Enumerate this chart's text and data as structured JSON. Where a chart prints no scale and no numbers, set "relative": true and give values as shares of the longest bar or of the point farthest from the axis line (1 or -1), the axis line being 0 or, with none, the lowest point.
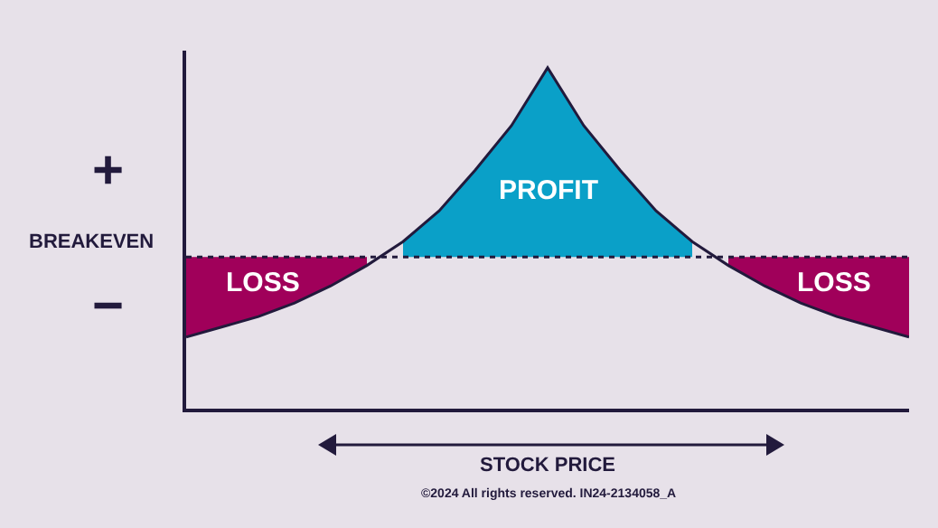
{
  "chart_data": {
    "type": "line",
    "relative": true,
    "xlabel": "STOCK PRICE",
    "categories": [
      null,
      null,
      null,
      null,
      null,
      null,
      null,
      null,
      null,
      null,
      null,
      null,
      null,
      null,
      null,
      null,
      null,
      null,
      null,
      null,
      null
    ],
    "series": [
      {
        "type": "area",
        "color": "#a0005a",
        "values": [
          0.445,
          0.445,
          0.445,
          0.445,
          0.445,
          0.445,
          null,
          null,
          null,
          null,
          null,
          null,
          null,
          null,
          null,
          null,
          null,
          null,
          null,
          null,
          null
        ]
      },
      {
        "type": "area",
        "color": "#0aa0c8",
        "values": [
          null,
          null,
          null,
          null,
          null,
          null,
          0.49,
          0.58,
          0.7,
          0.83,
          1,
          0.83,
          0.7,
          0.58,
          0.49,
          null,
          null,
          null,
          null,
          null,
          null
        ]
      },
      {
        "type": "area",
        "color": "#a0005a",
        "values": [
          null,
          null,
          null,
          null,
          null,
          null,
          null,
          null,
          null,
          null,
          null,
          null,
          null,
          null,
          null,
          0.445,
          0.445,
          0.445,
          0.445,
          0.445,
          0.445
        ]
      },
      {
        "color": "#221a3c",
        "values": [
          0.21,
          0.24,
          0.27,
          0.31,
          0.36,
          0.42,
          0.49,
          0.58,
          0.7,
          0.83,
          1,
          0.83,
          0.7,
          0.58,
          0.49,
          0.42,
          0.36,
          0.31,
          0.27,
          0.24,
          0.21
        ]
      }
    ],
    "ref_lines": [
      {
        "axis": "y",
        "value": 0.445,
        "label": "BREAKEVEN",
        "line_style": "dotted",
        "color": "#221a3c"
      }
    ],
    "annotations": [
      "+",
      "−",
      "PROFIT",
      "LOSS",
      "LOSS",
      "©2024 All rights reserved. IN24-2134058_A"
    ],
    "grid": false,
    "tick_labels": false
  }
}
